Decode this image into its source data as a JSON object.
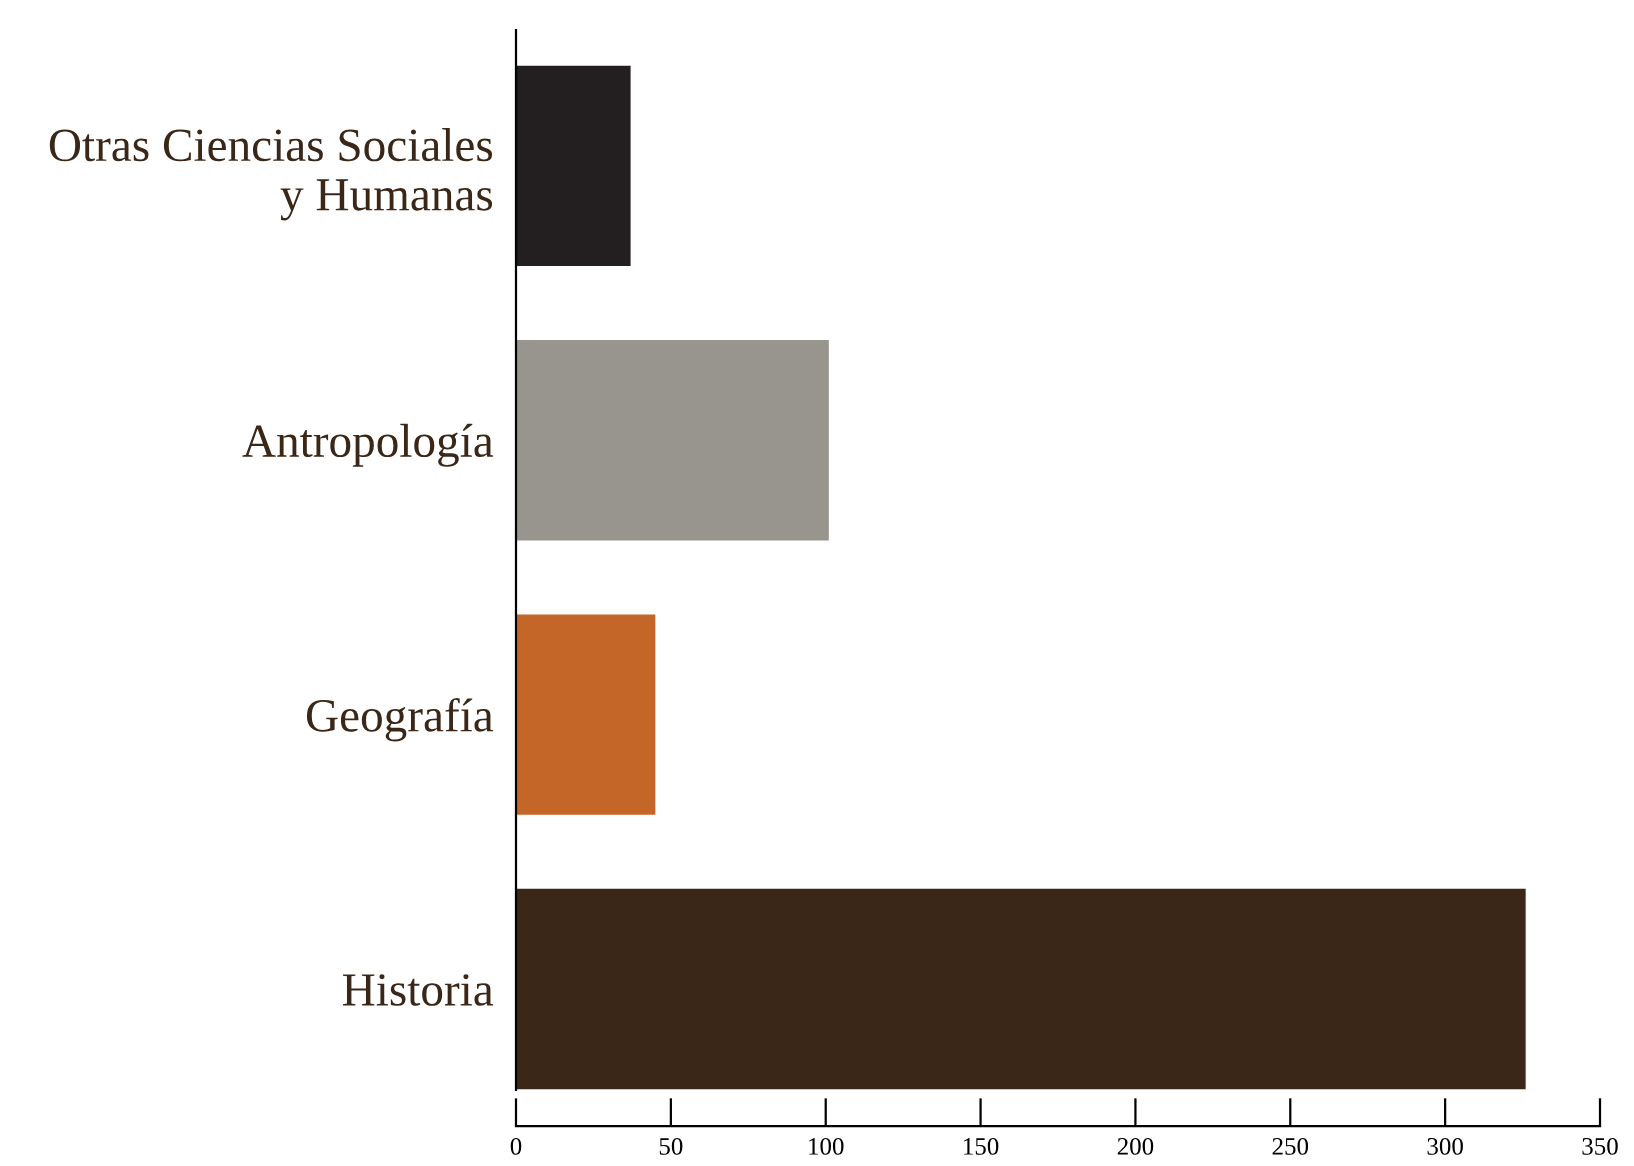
{
  "chart_data": {
    "type": "bar",
    "orientation": "horizontal",
    "categories": [
      "Otras Ciencias Sociales\ny Humanas",
      "Antropología",
      "Geografía",
      "Historia"
    ],
    "values": [
      37,
      101,
      45,
      326
    ],
    "colors": [
      "#231f20",
      "#97958d",
      "#c46627",
      "#3a2717"
    ],
    "xlim": [
      0,
      350
    ],
    "xticks": [
      0,
      50,
      100,
      150,
      200,
      250,
      300,
      350
    ],
    "grid": false
  }
}
